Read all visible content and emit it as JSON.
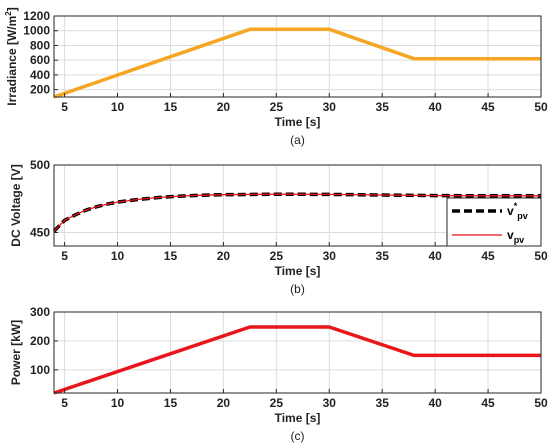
{
  "chart_data": [
    {
      "id": "a",
      "type": "line",
      "caption": "(a)",
      "xlabel": "Time [s]",
      "ylabel_main": "Irradiance [W/m",
      "ylabel_sup": "2",
      "ylabel_end": "]",
      "xlim": [
        4,
        50
      ],
      "ylim": [
        100,
        1200
      ],
      "xticks": [
        5,
        10,
        15,
        20,
        25,
        30,
        35,
        40,
        45,
        50
      ],
      "yticks": [
        200,
        400,
        600,
        800,
        1000,
        1200
      ],
      "grid": true,
      "series": [
        {
          "color": "#f5a623",
          "width": 3.5,
          "x": [
            4,
            22.5,
            30,
            38,
            50
          ],
          "y": [
            100,
            1020,
            1020,
            620,
            620
          ]
        }
      ]
    },
    {
      "id": "b",
      "type": "line",
      "caption": "(b)",
      "xlabel": "Time [s]",
      "ylabel_main": "DC Voltage [V]",
      "xlim": [
        4,
        50
      ],
      "ylim": [
        440,
        500
      ],
      "xticks": [
        5,
        10,
        15,
        20,
        25,
        30,
        35,
        40,
        45,
        50
      ],
      "yticks": [
        450,
        500
      ],
      "grid": true,
      "legend": "right",
      "series": [
        {
          "legend_main": "v",
          "legend_sup": "*",
          "legend_sub": "pv",
          "color": "#000000",
          "width": 3.5,
          "dash": "8,4",
          "x": [
            4,
            5,
            6,
            7,
            8,
            9,
            10,
            12,
            14,
            16,
            18,
            20,
            25,
            30,
            35,
            40,
            45,
            50
          ],
          "y": [
            451,
            459,
            463,
            466.5,
            469,
            471,
            472.5,
            474.5,
            476,
            477,
            477.6,
            478,
            478.4,
            478.2,
            477.8,
            477.3,
            477.2,
            477.2
          ]
        },
        {
          "legend_main": "v",
          "legend_sub": "pv",
          "color": "#e8151b",
          "width": 1.3,
          "x": [
            4,
            5,
            6,
            7,
            8,
            9,
            10,
            12,
            14,
            16,
            18,
            20,
            25,
            30,
            35,
            40,
            45,
            50
          ],
          "y": [
            451,
            459,
            463,
            466.5,
            469,
            471,
            472.5,
            474.5,
            476,
            477,
            477.6,
            478,
            478.4,
            478.2,
            477.8,
            477.3,
            477.2,
            477.2
          ]
        }
      ]
    },
    {
      "id": "c",
      "type": "line",
      "caption": "(c)",
      "xlabel": "Time [s]",
      "ylabel_main": "Power [kW]",
      "xlim": [
        4,
        50
      ],
      "ylim": [
        20,
        300
      ],
      "xticks": [
        5,
        10,
        15,
        20,
        25,
        30,
        35,
        40,
        45,
        50
      ],
      "yticks": [
        100,
        200,
        300
      ],
      "grid": true,
      "series": [
        {
          "color": "#e8151b",
          "width": 3.5,
          "x": [
            4,
            22.5,
            30,
            38,
            50
          ],
          "y": [
            20,
            248,
            248,
            150,
            150
          ]
        }
      ]
    }
  ]
}
